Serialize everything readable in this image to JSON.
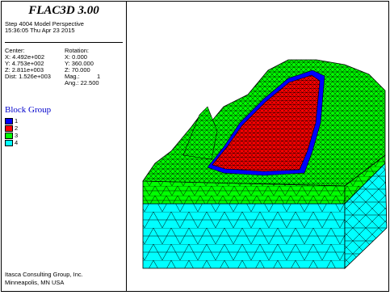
{
  "app": {
    "title": "FLAC3D 3.00"
  },
  "header": {
    "step_line": "Step 4004  Model Perspective",
    "time_line": "15:36:05 Thu Apr 23 2015"
  },
  "view": {
    "center_label": "Center:",
    "center_x": "X: 4.492e+002",
    "center_y": "Y: 4.753e+002",
    "center_z": "Z: 2.811e+003",
    "dist": "Dist: 1.526e+003",
    "rotation_label": "Rotation:",
    "rot_x": "X:   0.000",
    "rot_y": "Y: 360.000",
    "rot_z": "Z:  70.000",
    "mag_label": "Mag.:",
    "mag_value": "1",
    "ang": "Ang.:  22.500"
  },
  "legend": {
    "title": "Block Group",
    "items": [
      {
        "label": "1",
        "color": "#0000ff"
      },
      {
        "label": "2",
        "color": "#ff0000"
      },
      {
        "label": "3",
        "color": "#00ff00"
      },
      {
        "label": "4",
        "color": "#00ffff"
      }
    ]
  },
  "footer": {
    "company": "Itasca Consulting Group, Inc.",
    "location": "Minneapolis, MN  USA"
  },
  "colors": {
    "group1": "#0000ff",
    "group2": "#ff0000",
    "group3": "#00ff00",
    "group4": "#00ffff",
    "mesh": "#000000"
  }
}
